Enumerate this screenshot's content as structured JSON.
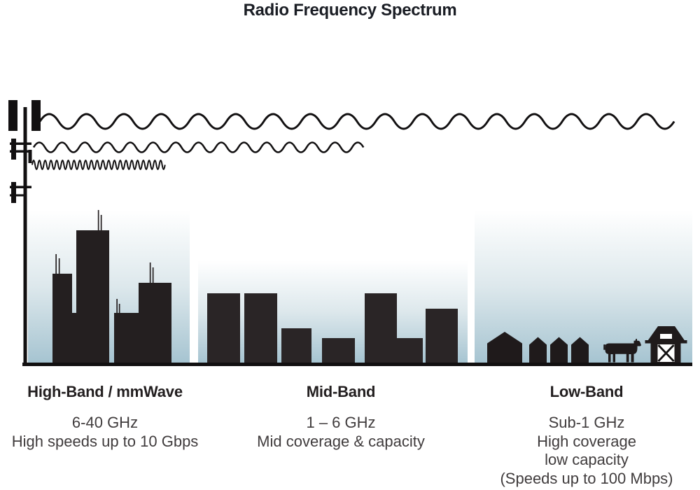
{
  "title": "Radio Frequency Spectrum",
  "bands": [
    {
      "name": "High-Band / mmWave",
      "frequency": "6-40 GHz",
      "lines": [
        "High speeds up to 10 Gbps"
      ]
    },
    {
      "name": "Mid-Band",
      "frequency": "1 – 6 GHz",
      "lines": [
        "Mid coverage & capacity"
      ]
    },
    {
      "name": "Low-Band",
      "frequency": "Sub-1 GHz",
      "lines": [
        "High coverage",
        "low capacity",
        "(Speeds up to 100 Mbps)"
      ]
    }
  ],
  "icons": {
    "cell_tower": "cell-tower-icon",
    "wave_long": "long-wavelength-wave-icon",
    "wave_medium": "medium-wavelength-wave-icon",
    "wave_short": "short-wavelength-wave-icon",
    "city_skyline": "city-skyline-icon",
    "midrise_skyline": "midrise-skyline-icon",
    "house": "house-icon",
    "cow": "cow-icon",
    "barn": "barn-icon"
  },
  "colors": {
    "ink": "#121011",
    "building_high": "#241f20",
    "building_mid": "#2a2526",
    "building_low": "#1f1a1b",
    "sky_top": "#ffffff",
    "sky_mid": "#dde8ec",
    "sky_bottom": "#a6c4d1",
    "title_text": "#1a1d24",
    "heading_text": "#221e1f",
    "body_text": "#403c3d"
  }
}
